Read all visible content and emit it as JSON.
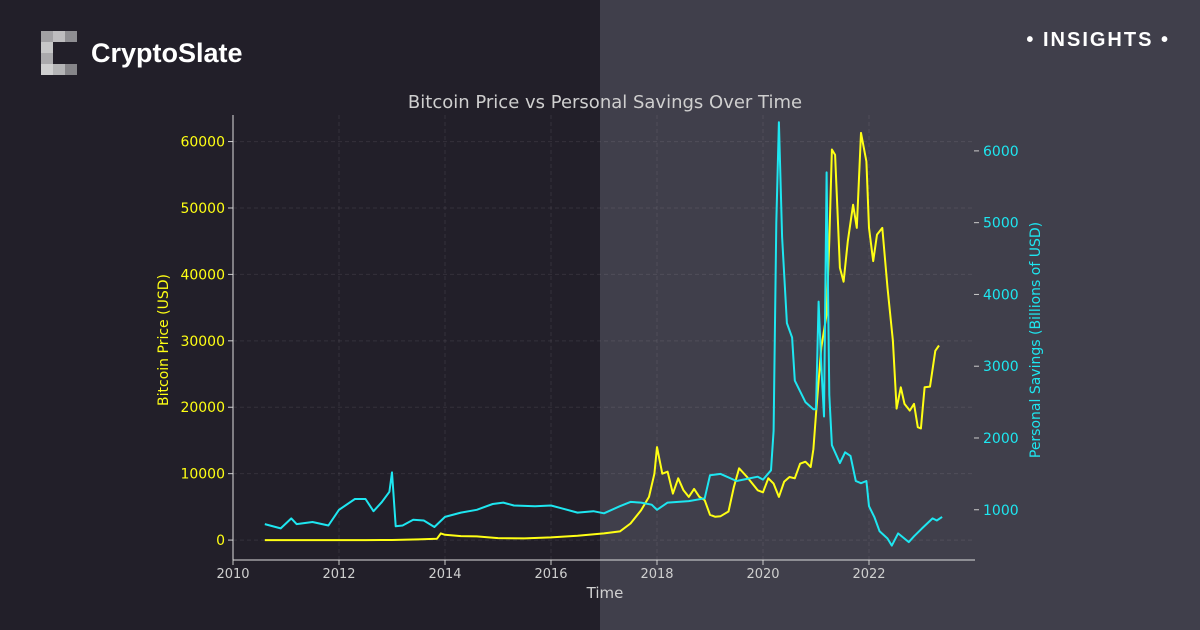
{
  "brand": {
    "name": "CryptoSlate",
    "logo_icon": "cryptoslate-pixel-c-logo"
  },
  "badge": {
    "label": "• INSIGHTS •"
  },
  "colors": {
    "bitcoin": "#ffff14",
    "savings": "#1ee6f0",
    "text": "#d0d0d0"
  },
  "chart_data": {
    "type": "line",
    "title": "Bitcoin Price vs Personal Savings Over Time",
    "xlabel": "Time",
    "ylabel": "Bitcoin Price (USD)",
    "ylabel_right": "Personal Savings (Billions of USD)",
    "xlim": [
      2010,
      2024
    ],
    "ylim": [
      -3000,
      64000
    ],
    "ylim_right": [
      300,
      6500
    ],
    "xticks": [
      "2010",
      "2012",
      "2014",
      "2016",
      "2018",
      "2020",
      "2022"
    ],
    "yticks": [
      "0",
      "10000",
      "20000",
      "30000",
      "40000",
      "50000",
      "60000"
    ],
    "yticks_right": [
      "1000",
      "2000",
      "3000",
      "4000",
      "5000",
      "6000"
    ],
    "grid": true,
    "series": [
      {
        "axis": "left",
        "color": "#ffff14",
        "points": [
          [
            2010.6,
            0
          ],
          [
            2011.5,
            0
          ],
          [
            2012.5,
            0
          ],
          [
            2013.0,
            13
          ],
          [
            2013.5,
            100
          ],
          [
            2013.85,
            200
          ],
          [
            2013.92,
            1000
          ],
          [
            2014.0,
            800
          ],
          [
            2014.3,
            600
          ],
          [
            2014.6,
            550
          ],
          [
            2015.0,
            300
          ],
          [
            2015.5,
            250
          ],
          [
            2016.0,
            400
          ],
          [
            2016.5,
            650
          ],
          [
            2017.0,
            1000
          ],
          [
            2017.3,
            1300
          ],
          [
            2017.5,
            2500
          ],
          [
            2017.7,
            4500
          ],
          [
            2017.85,
            6500
          ],
          [
            2017.95,
            10000
          ],
          [
            2018.0,
            14000
          ],
          [
            2018.1,
            10000
          ],
          [
            2018.2,
            10300
          ],
          [
            2018.3,
            7000
          ],
          [
            2018.4,
            9300
          ],
          [
            2018.5,
            7500
          ],
          [
            2018.6,
            6500
          ],
          [
            2018.7,
            7700
          ],
          [
            2018.8,
            6500
          ],
          [
            2018.9,
            6000
          ],
          [
            2019.0,
            3800
          ],
          [
            2019.1,
            3500
          ],
          [
            2019.2,
            3600
          ],
          [
            2019.35,
            4300
          ],
          [
            2019.45,
            8000
          ],
          [
            2019.55,
            10800
          ],
          [
            2019.7,
            9500
          ],
          [
            2019.8,
            8500
          ],
          [
            2019.9,
            7500
          ],
          [
            2020.0,
            7200
          ],
          [
            2020.1,
            9300
          ],
          [
            2020.2,
            8500
          ],
          [
            2020.3,
            6500
          ],
          [
            2020.4,
            8800
          ],
          [
            2020.5,
            9500
          ],
          [
            2020.6,
            9300
          ],
          [
            2020.7,
            11500
          ],
          [
            2020.8,
            11800
          ],
          [
            2020.9,
            11000
          ],
          [
            2020.95,
            13700
          ],
          [
            2021.0,
            19000
          ],
          [
            2021.1,
            29000
          ],
          [
            2021.2,
            34000
          ],
          [
            2021.25,
            45000
          ],
          [
            2021.3,
            58800
          ],
          [
            2021.36,
            58000
          ],
          [
            2021.45,
            41000
          ],
          [
            2021.52,
            38900
          ],
          [
            2021.6,
            45000
          ],
          [
            2021.7,
            50500
          ],
          [
            2021.77,
            47000
          ],
          [
            2021.85,
            61300
          ],
          [
            2021.95,
            57000
          ],
          [
            2022.0,
            47000
          ],
          [
            2022.08,
            42000
          ],
          [
            2022.15,
            46000
          ],
          [
            2022.25,
            47000
          ],
          [
            2022.35,
            38000
          ],
          [
            2022.45,
            30000
          ],
          [
            2022.52,
            19800
          ],
          [
            2022.6,
            23000
          ],
          [
            2022.67,
            20500
          ],
          [
            2022.77,
            19500
          ],
          [
            2022.85,
            20500
          ],
          [
            2022.92,
            17000
          ],
          [
            2022.98,
            16800
          ],
          [
            2023.05,
            23000
          ],
          [
            2023.15,
            23100
          ],
          [
            2023.25,
            28500
          ],
          [
            2023.32,
            29300
          ]
        ]
      },
      {
        "axis": "right",
        "color": "#1ee6f0",
        "points": [
          [
            2010.6,
            800
          ],
          [
            2010.9,
            740
          ],
          [
            2011.1,
            880
          ],
          [
            2011.2,
            800
          ],
          [
            2011.5,
            830
          ],
          [
            2011.8,
            780
          ],
          [
            2012.0,
            1000
          ],
          [
            2012.3,
            1150
          ],
          [
            2012.5,
            1150
          ],
          [
            2012.65,
            980
          ],
          [
            2012.8,
            1100
          ],
          [
            2012.95,
            1250
          ],
          [
            2013.0,
            1520
          ],
          [
            2013.07,
            770
          ],
          [
            2013.2,
            780
          ],
          [
            2013.4,
            860
          ],
          [
            2013.6,
            850
          ],
          [
            2013.8,
            760
          ],
          [
            2014.0,
            900
          ],
          [
            2014.3,
            960
          ],
          [
            2014.6,
            1000
          ],
          [
            2014.9,
            1080
          ],
          [
            2015.1,
            1100
          ],
          [
            2015.3,
            1060
          ],
          [
            2015.7,
            1050
          ],
          [
            2016.0,
            1060
          ],
          [
            2016.2,
            1020
          ],
          [
            2016.5,
            960
          ],
          [
            2016.8,
            980
          ],
          [
            2017.0,
            950
          ],
          [
            2017.3,
            1050
          ],
          [
            2017.5,
            1110
          ],
          [
            2017.7,
            1100
          ],
          [
            2017.9,
            1070
          ],
          [
            2018.0,
            1000
          ],
          [
            2018.2,
            1100
          ],
          [
            2018.6,
            1120
          ],
          [
            2018.9,
            1160
          ],
          [
            2019.0,
            1480
          ],
          [
            2019.2,
            1500
          ],
          [
            2019.5,
            1400
          ],
          [
            2019.7,
            1430
          ],
          [
            2019.9,
            1460
          ],
          [
            2020.0,
            1420
          ],
          [
            2020.15,
            1550
          ],
          [
            2020.2,
            2100
          ],
          [
            2020.25,
            5000
          ],
          [
            2020.3,
            6400
          ],
          [
            2020.36,
            4800
          ],
          [
            2020.45,
            3600
          ],
          [
            2020.55,
            3400
          ],
          [
            2020.6,
            2800
          ],
          [
            2020.8,
            2500
          ],
          [
            2020.95,
            2400
          ],
          [
            2021.0,
            2400
          ],
          [
            2021.05,
            3900
          ],
          [
            2021.1,
            3000
          ],
          [
            2021.15,
            2300
          ],
          [
            2021.2,
            5700
          ],
          [
            2021.25,
            2600
          ],
          [
            2021.3,
            1900
          ],
          [
            2021.45,
            1650
          ],
          [
            2021.55,
            1800
          ],
          [
            2021.65,
            1750
          ],
          [
            2021.75,
            1400
          ],
          [
            2021.85,
            1370
          ],
          [
            2021.95,
            1400
          ],
          [
            2022.0,
            1050
          ],
          [
            2022.1,
            900
          ],
          [
            2022.2,
            700
          ],
          [
            2022.35,
            600
          ],
          [
            2022.43,
            500
          ],
          [
            2022.55,
            670
          ],
          [
            2022.75,
            550
          ],
          [
            2022.85,
            630
          ],
          [
            2023.0,
            740
          ],
          [
            2023.2,
            880
          ],
          [
            2023.28,
            850
          ],
          [
            2023.38,
            900
          ]
        ]
      }
    ]
  }
}
